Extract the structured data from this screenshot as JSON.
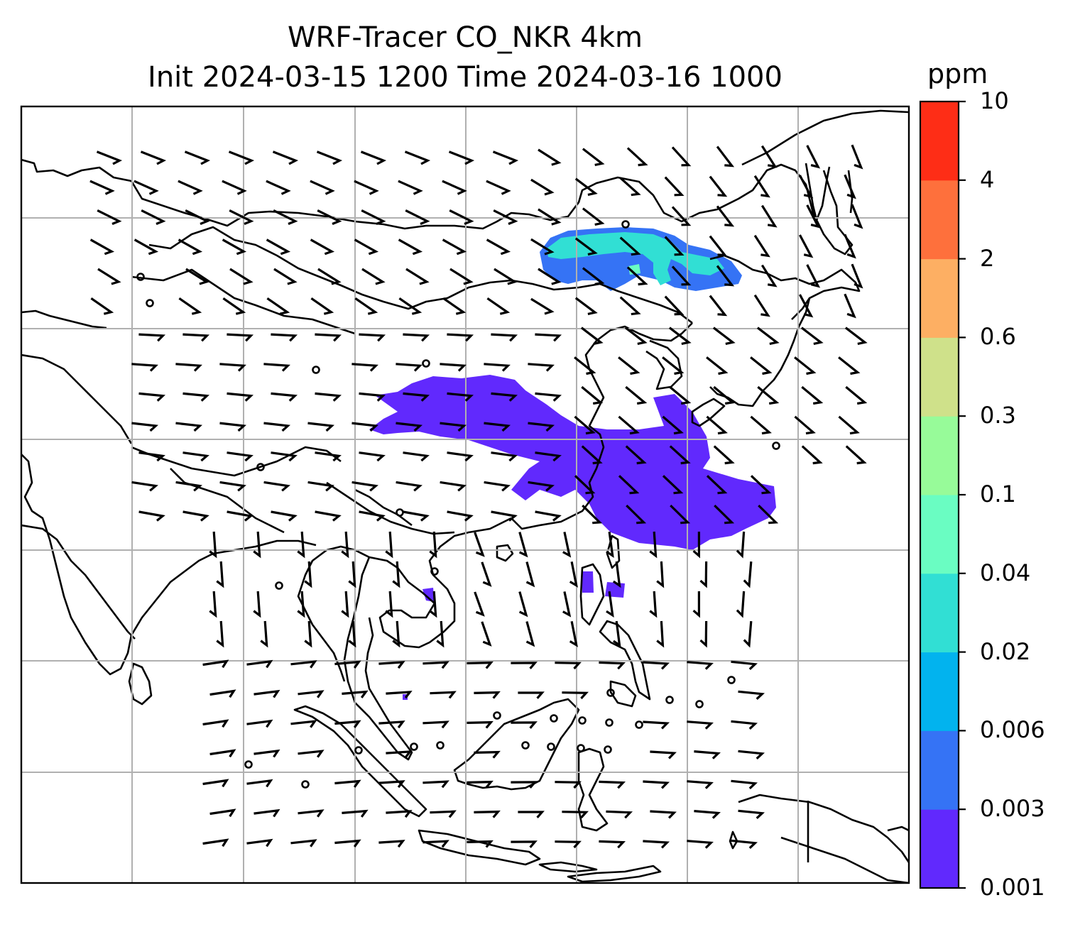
{
  "title_line1": "WRF-Tracer CO_NKR 4km",
  "title_line2": "Init 2024-03-15 1200 Time 2024-03-16 1000",
  "colorbar": {
    "unit": "ppm",
    "levels": [
      "0.001",
      "0.003",
      "0.006",
      "0.02",
      "0.04",
      "0.1",
      "0.3",
      "0.6",
      "2",
      "4",
      "10"
    ],
    "colors": [
      "#6129fd",
      "#3573f5",
      "#02b3ee",
      "#31dfd4",
      "#6afdc2",
      "#97fb99",
      "#cfe18a",
      "#fdaf63",
      "#fe703c",
      "#fe2d16"
    ]
  },
  "map": {
    "land_line_color": "#000000",
    "grid_color": "#b0b0b0",
    "barb_color": "#000000",
    "gridlines": true
  },
  "tracer_plumes": [
    {
      "name": "northern plume",
      "level": "0.003–0.04 ppm"
    },
    {
      "name": "central plume",
      "level": "0.001 ppm"
    }
  ]
}
